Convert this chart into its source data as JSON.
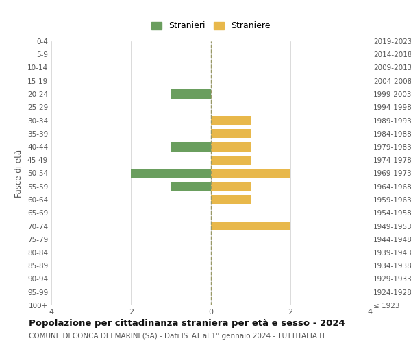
{
  "age_groups": [
    "100+",
    "95-99",
    "90-94",
    "85-89",
    "80-84",
    "75-79",
    "70-74",
    "65-69",
    "60-64",
    "55-59",
    "50-54",
    "45-49",
    "40-44",
    "35-39",
    "30-34",
    "25-29",
    "20-24",
    "15-19",
    "10-14",
    "5-9",
    "0-4"
  ],
  "birth_years": [
    "≤ 1923",
    "1924-1928",
    "1929-1933",
    "1934-1938",
    "1939-1943",
    "1944-1948",
    "1949-1953",
    "1954-1958",
    "1959-1963",
    "1964-1968",
    "1969-1973",
    "1974-1978",
    "1979-1983",
    "1984-1988",
    "1989-1993",
    "1994-1998",
    "1999-2003",
    "2004-2008",
    "2009-2013",
    "2014-2018",
    "2019-2023"
  ],
  "male_values": [
    0,
    0,
    0,
    0,
    0,
    0,
    0,
    0,
    0,
    -1,
    -2,
    0,
    -1,
    0,
    0,
    0,
    -1,
    0,
    0,
    0,
    0
  ],
  "female_values": [
    0,
    0,
    0,
    0,
    0,
    0,
    2,
    0,
    1,
    1,
    2,
    1,
    1,
    1,
    1,
    0,
    0,
    0,
    0,
    0,
    0
  ],
  "male_color": "#6a9e5e",
  "female_color": "#e8b84b",
  "male_label": "Stranieri",
  "female_label": "Straniere",
  "xlim": 4,
  "xticks": [
    -4,
    -2,
    0,
    2,
    4
  ],
  "xtick_labels": [
    "4",
    "2",
    "0",
    "2",
    "4"
  ],
  "ylabel_left": "Fasce di età",
  "title": "Popolazione per cittadinanza straniera per età e sesso - 2024",
  "subtitle": "COMUNE DI CONCA DEI MARINI (SA) - Dati ISTAT al 1° gennaio 2024 - TUTTITALIA.IT",
  "background_color": "#ffffff",
  "grid_color": "#cccccc",
  "bar_height": 0.7
}
